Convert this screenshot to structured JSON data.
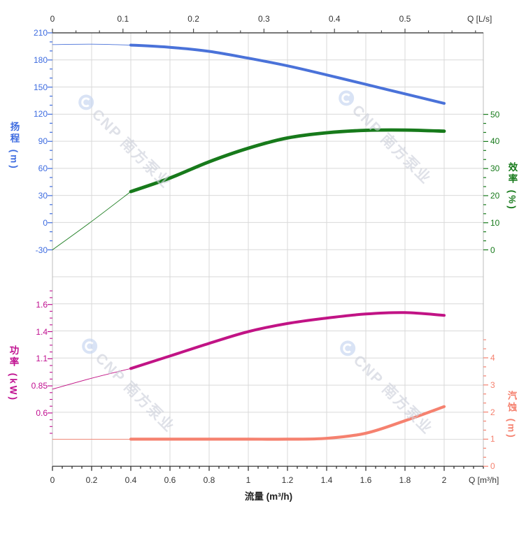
{
  "watermark": {
    "text": "CNP 南方泵业"
  },
  "colors": {
    "head": "#3e6ce0",
    "head_curve": "#4a72d9",
    "eff": "#177a1b",
    "power": "#c01090",
    "npsh": "#f5816f",
    "grid": "#d9d9d9",
    "frame_side": "#bdbdbd",
    "axis_line": "#4d4d4d",
    "black_text": "#333333"
  },
  "top_axis": {
    "title": "Q [L/s]",
    "tick_labels": [
      "0",
      "0.1",
      "0.2",
      "0.3",
      "0.4",
      "0.5"
    ],
    "tick_values": [
      0,
      0.1,
      0.2,
      0.3,
      0.4,
      0.5
    ]
  },
  "bottom_axis": {
    "title": "Q [m³/h]",
    "axis_label": "流量 (m³/h)",
    "tick_labels": [
      "0",
      "0.2",
      "0.4",
      "0.6",
      "0.8",
      "1",
      "1.2",
      "1.4",
      "1.6",
      "1.8",
      "2"
    ],
    "tick_values": [
      0,
      0.2,
      0.4,
      0.6,
      0.8,
      1,
      1.2,
      1.4,
      1.6,
      1.8,
      2
    ]
  },
  "left_axis_top": {
    "title": "扬程 (m)",
    "tick_labels": [
      "210",
      "180",
      "150",
      "120",
      "90",
      "60",
      "30",
      "0",
      "-30"
    ],
    "tick_values": [
      210,
      180,
      150,
      120,
      90,
      60,
      30,
      0,
      -30
    ]
  },
  "right_axis_top": {
    "title": "效率 (%)",
    "tick_labels": [
      "50",
      "40",
      "30",
      "20",
      "10",
      "0"
    ],
    "tick_values": [
      50,
      40,
      30,
      20,
      10,
      0
    ]
  },
  "left_axis_bottom": {
    "title": "功率 (kW)",
    "tick_labels": [
      "1.6",
      "1.4",
      "1.1",
      "0.85",
      "0.6"
    ],
    "tick_values": [
      1.6,
      1.4,
      1.1,
      0.85,
      0.6
    ]
  },
  "right_axis_bottom": {
    "title": "汽蚀 (m)",
    "tick_labels": [
      "4",
      "3",
      "2",
      "1",
      "0"
    ],
    "tick_values": [
      4,
      3,
      2,
      1,
      0
    ]
  },
  "chart_data": {
    "type": "line",
    "title": "",
    "xlabel": "流量 (m³/h)",
    "x_q_m3h": [
      0,
      0.2,
      0.4,
      0.6,
      0.8,
      1.0,
      1.2,
      1.4,
      1.6,
      1.8,
      2.0
    ],
    "x_range_m3h": [
      0,
      2.2
    ],
    "top_x_unit": "L/s",
    "duty_range_start_q": 0.4,
    "grid": true,
    "series": [
      {
        "name": "扬程",
        "unit": "m",
        "axis": "head",
        "axis_range": [
          -30,
          210
        ],
        "values": [
          197,
          197.5,
          196.5,
          194,
          189.5,
          182,
          173.5,
          163.5,
          153,
          142.5,
          132
        ]
      },
      {
        "name": "效率",
        "unit": "%",
        "axis": "eff",
        "axis_range": [
          0,
          50
        ],
        "values": [
          0,
          10.5,
          21.5,
          26.5,
          32.5,
          37.5,
          41.3,
          43.2,
          44.1,
          44.2,
          43.8
        ]
      },
      {
        "name": "功率",
        "unit": "kW",
        "axis": "power",
        "axis_ticks": [
          0.6,
          0.85,
          1.1,
          1.4,
          1.6
        ],
        "values": [
          0.82,
          0.92,
          1.01,
          1.13,
          1.27,
          1.4,
          1.46,
          1.5,
          1.53,
          1.54,
          1.52
        ]
      },
      {
        "name": "汽蚀",
        "unit": "m",
        "axis": "npsh",
        "axis_range": [
          0,
          4
        ],
        "values": [
          1.0,
          1.0,
          1.0,
          1.0,
          1.0,
          1.0,
          1.0,
          1.03,
          1.22,
          1.68,
          2.2
        ]
      }
    ]
  }
}
